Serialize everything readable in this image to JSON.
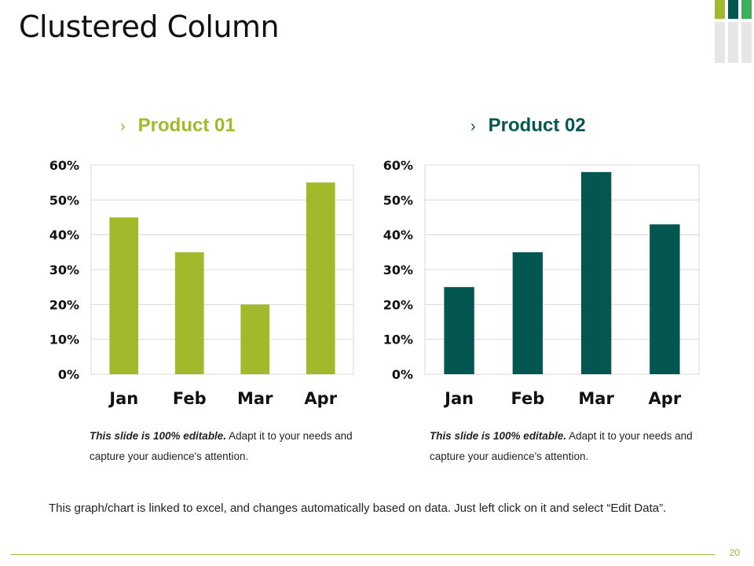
{
  "slide": {
    "title": "Clustered Column",
    "footer_note": "This graph/chart is linked to excel, and changes automatically based on data. Just left click on it and select “Edit Data”.",
    "page_number": "20"
  },
  "colors": {
    "accent_green": "#a2b92b",
    "accent_teal": "#045651",
    "deco_grey": "#e6e6e6"
  },
  "chart_data": [
    {
      "type": "bar",
      "title": "Product 01",
      "chevron": "›",
      "categories": [
        "Jan",
        "Feb",
        "Mar",
        "Apr"
      ],
      "values": [
        45,
        35,
        20,
        55
      ],
      "yticks": [
        "0%",
        "10%",
        "20%",
        "30%",
        "40%",
        "50%",
        "60%"
      ],
      "ylim": [
        0,
        60
      ],
      "unit": "%",
      "color": "#a2b92b",
      "grid": true,
      "note_bold": "This slide is 100% editable.",
      "note_text": " Adapt it to your needs and capture your audience's attention."
    },
    {
      "type": "bar",
      "title": "Product 02",
      "chevron": "›",
      "categories": [
        "Jan",
        "Feb",
        "Mar",
        "Apr"
      ],
      "values": [
        25,
        35,
        58,
        43
      ],
      "yticks": [
        "0%",
        "10%",
        "20%",
        "30%",
        "40%",
        "50%",
        "60%"
      ],
      "ylim": [
        0,
        60
      ],
      "unit": "%",
      "color": "#045651",
      "grid": true,
      "note_bold": "This slide is 100% editable.",
      "note_text": " Adapt it to your needs and capture your audience's attention."
    }
  ]
}
